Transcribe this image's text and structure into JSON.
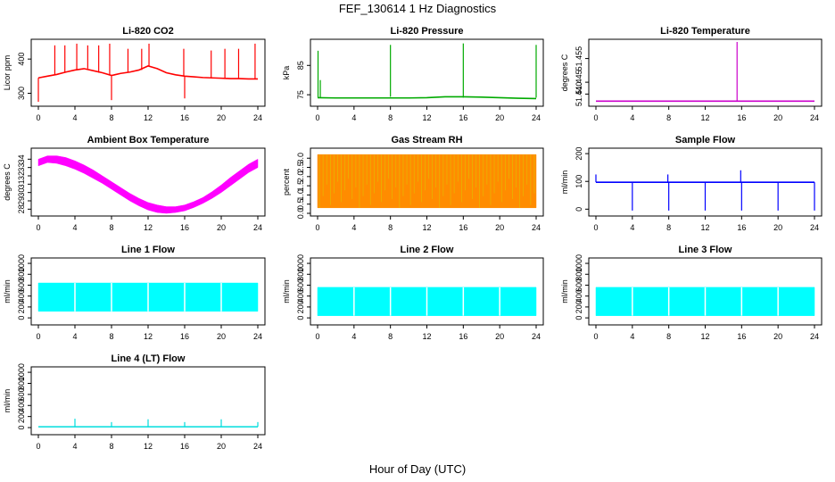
{
  "figure": {
    "title": "FEF_130614  1 Hz Diagnostics",
    "xlabel": "Hour of Day (UTC)"
  },
  "chart_data": [
    {
      "type": "line",
      "title": "Li-820 CO2",
      "ylabel": "Licor ppm",
      "color": "#ff0000",
      "xlim": [
        0,
        24
      ],
      "xticks": [
        0,
        4,
        8,
        12,
        16,
        20,
        24
      ],
      "ylim": [
        270,
        450
      ],
      "yticks": [
        300,
        400
      ],
      "x": [
        0,
        1,
        2,
        3,
        4,
        5,
        6,
        7,
        8,
        9,
        10,
        11,
        12,
        13,
        14,
        15,
        16,
        17,
        18,
        19,
        20,
        21,
        22,
        23,
        24
      ],
      "values": [
        345,
        350,
        355,
        362,
        368,
        372,
        366,
        360,
        352,
        358,
        362,
        368,
        380,
        372,
        360,
        354,
        350,
        348,
        346,
        345,
        344,
        343,
        343,
        342,
        342
      ],
      "spikes": [
        [
          0,
          275
        ],
        [
          1.8,
          440
        ],
        [
          2.9,
          440
        ],
        [
          4.2,
          445
        ],
        [
          5.4,
          440
        ],
        [
          6.6,
          440
        ],
        [
          7.8,
          445
        ],
        [
          8,
          280
        ],
        [
          9.8,
          430
        ],
        [
          11.3,
          430
        ],
        [
          12.1,
          445
        ],
        [
          15.9,
          430
        ],
        [
          16,
          285
        ],
        [
          18.9,
          425
        ],
        [
          20.4,
          430
        ],
        [
          21.9,
          430
        ],
        [
          23.7,
          445
        ]
      ]
    },
    {
      "type": "line",
      "title": "Li-820 Pressure",
      "ylabel": "kPa",
      "color": "#00aa00",
      "xlim": [
        0,
        24
      ],
      "xticks": [
        0,
        4,
        8,
        12,
        16,
        20,
        24
      ],
      "ylim": [
        72,
        93
      ],
      "yticks": [
        75,
        85
      ],
      "x": [
        0,
        2,
        4,
        6,
        8,
        10,
        12,
        14,
        16,
        18,
        20,
        22,
        24
      ],
      "values": [
        74.0,
        73.9,
        73.9,
        73.9,
        73.9,
        73.9,
        74.0,
        74.3,
        74.3,
        74.2,
        74.0,
        73.8,
        73.7
      ],
      "spikes": [
        [
          0.05,
          90
        ],
        [
          0.3,
          80
        ],
        [
          8,
          92
        ],
        [
          16,
          92.5
        ],
        [
          24,
          92
        ]
      ]
    },
    {
      "type": "line",
      "title": "Li-820 Temperature",
      "ylabel": "degrees C",
      "color": "#cc00cc",
      "xlim": [
        0,
        24
      ],
      "xticks": [
        0,
        4,
        8,
        12,
        16,
        20,
        24
      ],
      "ylim": [
        51.436,
        51.462
      ],
      "yticks": [
        51.44,
        51.445,
        51.455
      ],
      "yticklabels": [
        "51.440",
        "51.445",
        "51.455"
      ],
      "x": [
        0,
        24
      ],
      "values": [
        51.437,
        51.437
      ],
      "spikes": [
        [
          15.5,
          51.462
        ]
      ]
    },
    {
      "type": "area",
      "title": "Ambient Box Temperature",
      "ylabel": "degrees C",
      "color": "#ff00ff",
      "xlim": [
        0,
        24
      ],
      "xticks": [
        0,
        4,
        8,
        12,
        16,
        20,
        24
      ],
      "ylim": [
        27.5,
        35
      ],
      "yticks": [
        28,
        29,
        30,
        31,
        32,
        33,
        34
      ],
      "x": [
        0,
        1,
        2,
        3,
        4,
        5,
        6,
        7,
        8,
        9,
        10,
        11,
        12,
        13,
        14,
        15,
        16,
        17,
        18,
        19,
        20,
        21,
        22,
        23,
        24
      ],
      "upper": [
        34.0,
        34.4,
        34.4,
        34.2,
        33.8,
        33.3,
        32.7,
        32.0,
        31.3,
        30.6,
        29.9,
        29.3,
        28.8,
        28.5,
        28.3,
        28.3,
        28.5,
        28.9,
        29.4,
        30.1,
        30.9,
        31.8,
        32.6,
        33.4,
        34.0
      ],
      "lower": [
        33.2,
        33.6,
        33.5,
        33.2,
        32.8,
        32.3,
        31.7,
        31.1,
        30.4,
        29.7,
        29.0,
        28.4,
        27.9,
        27.6,
        27.5,
        27.6,
        27.8,
        28.2,
        28.7,
        29.3,
        30.0,
        30.8,
        31.6,
        32.4,
        33.0
      ]
    },
    {
      "type": "area",
      "title": "Gas Stream RH",
      "ylabel": "percent",
      "color": "#ff8c00",
      "color2": "#e0c000",
      "xlim": [
        0,
        24
      ],
      "xticks": [
        0,
        4,
        8,
        12,
        16,
        20,
        24
      ],
      "ylim": [
        0,
        3.4
      ],
      "yticks": [
        0,
        0.5,
        1,
        1.5,
        2,
        2.5,
        3
      ],
      "yticklabels": [
        "0.0",
        "0.5",
        "1.0",
        "1.5",
        "2.0",
        "2.5",
        "3.0"
      ],
      "x": [
        0,
        24
      ],
      "upper": [
        3.2,
        3.2
      ],
      "lower": [
        0.3,
        0.3
      ]
    },
    {
      "type": "line",
      "title": "Sample Flow",
      "ylabel": "ml/min",
      "color": "#0000ff",
      "xlim": [
        0,
        24
      ],
      "xticks": [
        0,
        4,
        8,
        12,
        16,
        20,
        24
      ],
      "ylim": [
        -15,
        210
      ],
      "yticks": [
        0,
        100,
        200
      ],
      "x": [
        0,
        24
      ],
      "values": [
        97,
        97
      ],
      "spikes": [
        [
          0,
          125
        ],
        [
          4,
          -5
        ],
        [
          7.9,
          125
        ],
        [
          8,
          -5
        ],
        [
          12,
          -5
        ],
        [
          15.9,
          140
        ],
        [
          16,
          -5
        ],
        [
          20,
          -5
        ],
        [
          24,
          -5
        ]
      ]
    },
    {
      "type": "area",
      "title": "Line 1 Flow",
      "ylabel": "ml/min",
      "color": "#00ffff",
      "xlim": [
        0,
        24
      ],
      "xticks": [
        0,
        4,
        8,
        12,
        16,
        20,
        24
      ],
      "ylim": [
        -80,
        1050
      ],
      "yticks": [
        0,
        200,
        400,
        600,
        800,
        1000
      ],
      "x": [
        0,
        24
      ],
      "upper": [
        640,
        640
      ],
      "lower": [
        120,
        120
      ],
      "gaps": [
        4,
        8,
        12,
        16,
        20
      ]
    },
    {
      "type": "area",
      "title": "Line 2 Flow",
      "ylabel": "ml/min",
      "color": "#00ffff",
      "xlim": [
        0,
        24
      ],
      "xticks": [
        0,
        4,
        8,
        12,
        16,
        20,
        24
      ],
      "ylim": [
        -80,
        1050
      ],
      "yticks": [
        0,
        200,
        400,
        600,
        800,
        1000
      ],
      "x": [
        0,
        24
      ],
      "upper": [
        560,
        560
      ],
      "lower": [
        40,
        40
      ],
      "gaps": [
        4,
        8,
        12,
        16,
        20
      ]
    },
    {
      "type": "area",
      "title": "Line 3 Flow",
      "ylabel": "ml/min",
      "color": "#00ffff",
      "xlim": [
        0,
        24
      ],
      "xticks": [
        0,
        4,
        8,
        12,
        16,
        20,
        24
      ],
      "ylim": [
        -80,
        1050
      ],
      "yticks": [
        0,
        200,
        400,
        600,
        800,
        1000
      ],
      "x": [
        0,
        24
      ],
      "upper": [
        560,
        560
      ],
      "lower": [
        40,
        40
      ],
      "gaps": [
        4,
        8,
        12,
        16,
        20
      ]
    },
    {
      "type": "line",
      "title": "Line 4 (LT) Flow",
      "ylabel": "ml/min",
      "color": "#00dddd",
      "xlim": [
        0,
        24
      ],
      "xticks": [
        0,
        4,
        8,
        12,
        16,
        20,
        24
      ],
      "ylim": [
        -80,
        1050
      ],
      "yticks": [
        0,
        200,
        400,
        600,
        800,
        1000
      ],
      "x": [
        0,
        24
      ],
      "values": [
        15,
        15
      ],
      "spikes": [
        [
          4,
          160
        ],
        [
          8,
          100
        ],
        [
          12,
          150
        ],
        [
          16,
          100
        ],
        [
          20,
          150
        ],
        [
          24,
          100
        ]
      ]
    }
  ]
}
